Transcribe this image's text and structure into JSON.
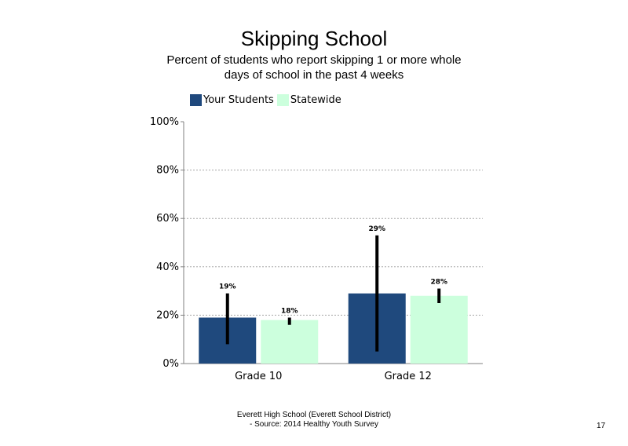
{
  "chart_data": {
    "type": "bar",
    "title": "Skipping School",
    "subtitle": "Percent of students who report skipping 1 or more whole days of school in the past 4 weeks",
    "categories": [
      "Grade 10",
      "Grade 12"
    ],
    "series": [
      {
        "name": "Your Students",
        "color": "#1f497d",
        "values": [
          19,
          29
        ],
        "error_low": [
          8,
          5
        ],
        "error_high": [
          29,
          53
        ]
      },
      {
        "name": "Statewide",
        "color": "#ccffdd",
        "values": [
          18,
          28
        ],
        "error_low": [
          16,
          25
        ],
        "error_high": [
          19,
          31
        ]
      }
    ],
    "data_labels": [
      [
        "19%",
        "29%"
      ],
      [
        "18%",
        "28%"
      ]
    ],
    "yticks": [
      "0%",
      "20%",
      "40%",
      "60%",
      "80%",
      "100%"
    ],
    "ylim": [
      0,
      100
    ],
    "grid": "dotted horizontal",
    "legend_position": "top-left"
  },
  "footer": {
    "line1": "Everett High School (Everett School District)",
    "line2": "- Source: 2014 Healthy Youth Survey"
  },
  "page_number": "17"
}
